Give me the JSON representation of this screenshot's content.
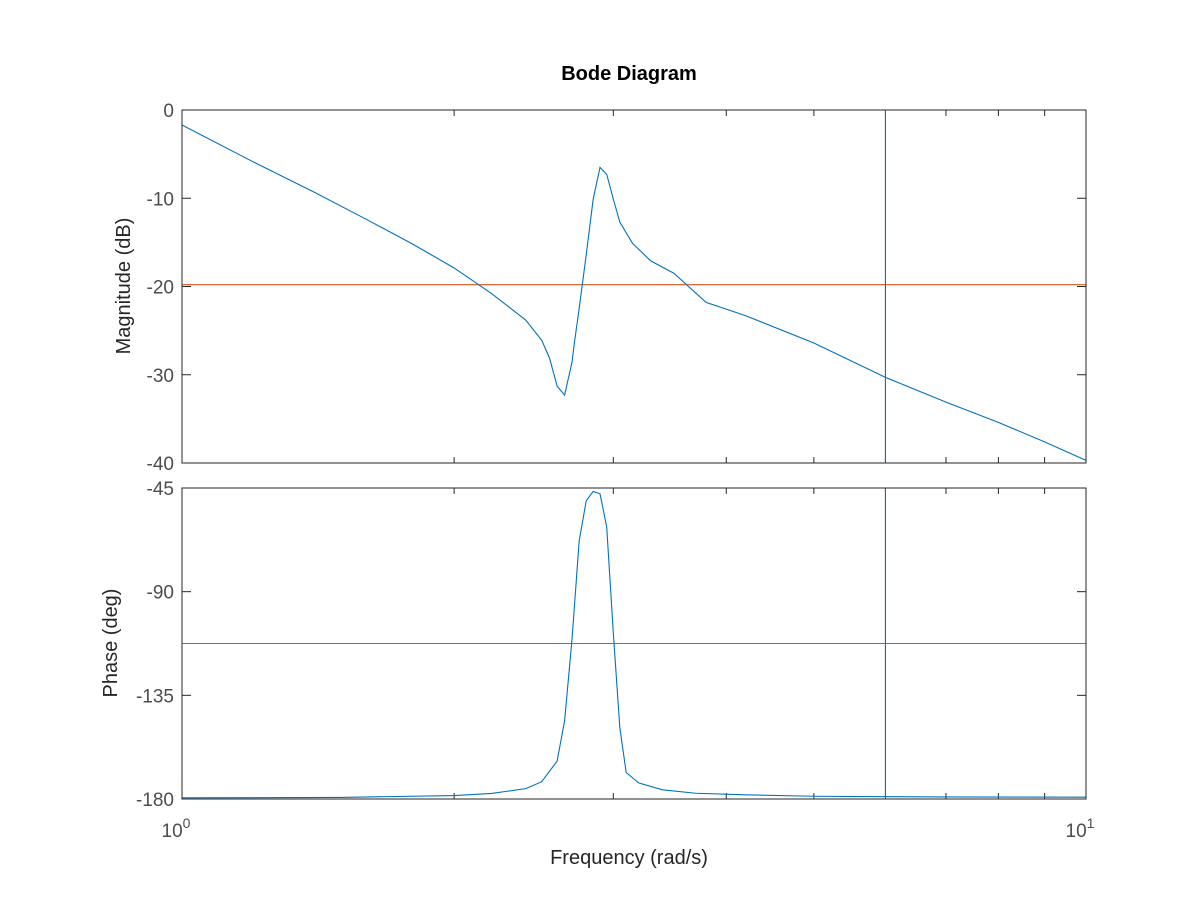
{
  "chart_data": {
    "type": "line",
    "title": "Bode Diagram",
    "xlabel": "Frequency  (rad/s)",
    "xscale": "log",
    "xlim": [
      1,
      10
    ],
    "x_tick_labels": [
      {
        "value": 1,
        "base": "10",
        "exp": "0"
      },
      {
        "value": 10,
        "base": "10",
        "exp": "1"
      }
    ],
    "grid": false,
    "series_colors": {
      "response": "#0072bd",
      "reference": "#d95319"
    },
    "panels": [
      {
        "id": "magnitude",
        "ylabel": "Magnitude (dB)",
        "ylim": [
          -40,
          0
        ],
        "yticks": [
          0,
          -10,
          -20,
          -30,
          -40
        ],
        "ytick_labels": [
          "0",
          "-10",
          "-20",
          "-30",
          "-40"
        ],
        "series": [
          {
            "x": [
              1.0,
              1.2,
              1.4,
              1.6,
              1.8,
              2.0,
              2.2,
              2.4,
              2.5,
              2.55,
              2.6,
              2.65,
              2.7,
              2.72,
              2.75,
              2.8,
              2.85,
              2.9,
              2.95,
              3.0,
              3.05,
              3.15,
              3.3,
              3.5,
              3.8,
              4.2,
              5.0,
              6.0,
              7.0,
              8.0,
              9.0,
              10.0
            ],
            "y": [
              -1.7,
              -5.9,
              -9.3,
              -12.4,
              -15.2,
              -17.9,
              -20.8,
              -23.8,
              -26.1,
              -28.1,
              -31.3,
              -32.3,
              -28.6,
              -26.0,
              -22.5,
              -16.4,
              -10.1,
              -6.5,
              -7.3,
              -10.1,
              -12.7,
              -15.1,
              -17.1,
              -18.5,
              -21.8,
              -23.3,
              -26.4,
              -30.3,
              -33.1,
              -35.4,
              -37.6,
              -39.7
            ]
          }
        ],
        "ref_lines": [
          {
            "orientation": "horizontal",
            "y": -19.8
          },
          {
            "orientation": "vertical",
            "x": 6.0
          }
        ]
      },
      {
        "id": "phase",
        "ylabel": "Phase (deg)",
        "ylim": [
          -180,
          -45
        ],
        "yticks": [
          -45,
          -90,
          -135,
          -180
        ],
        "ytick_labels": [
          "-45",
          "-90",
          "-135",
          "-180"
        ],
        "series": [
          {
            "x": [
              1.0,
              1.5,
              2.0,
              2.2,
              2.4,
              2.5,
              2.6,
              2.65,
              2.7,
              2.75,
              2.8,
              2.85,
              2.9,
              2.95,
              3.0,
              3.05,
              3.1,
              3.2,
              3.4,
              3.7,
              4.2,
              5.0,
              6.0,
              7.0,
              10.0
            ],
            "y": [
              -179.5,
              -179.3,
              -178.5,
              -177.6,
              -175.5,
              -172.5,
              -163.5,
              -146.0,
              -111.0,
              -68.0,
              -50.5,
              -46.5,
              -47.5,
              -62.0,
              -108.0,
              -149.0,
              -168.5,
              -173.0,
              -176.0,
              -177.5,
              -178.2,
              -178.8,
              -179.0,
              -179.1,
              -179.2
            ]
          }
        ],
        "ref_lines": [
          {
            "orientation": "horizontal",
            "y": -112.5
          },
          {
            "orientation": "vertical",
            "x": 6.0
          }
        ]
      }
    ]
  }
}
